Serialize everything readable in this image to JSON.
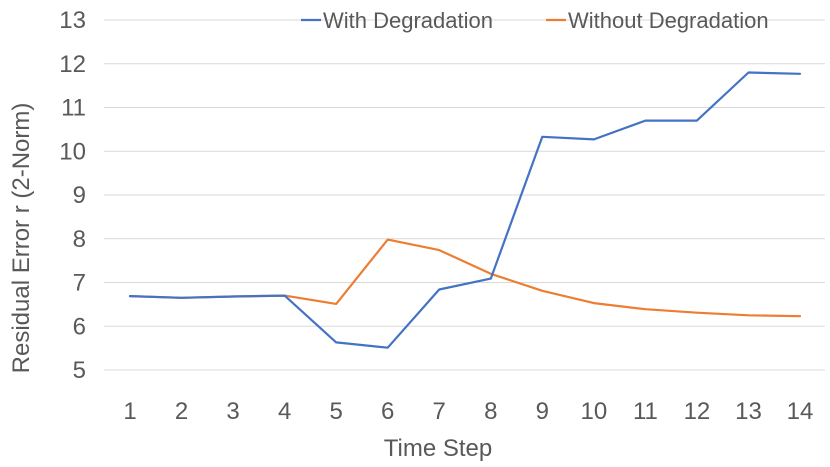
{
  "chart_data": {
    "type": "line",
    "xlabel": "Time Step",
    "ylabel": "Residual Error r  (2-Norm)",
    "categories": [
      "1",
      "2",
      "3",
      "4",
      "5",
      "6",
      "7",
      "8",
      "9",
      "10",
      "11",
      "12",
      "13",
      "14"
    ],
    "ylim": [
      5,
      13
    ],
    "yticks": [
      "5",
      "6",
      "7",
      "8",
      "9",
      "10",
      "11",
      "12",
      "13"
    ],
    "grid": true,
    "legend_position": "top",
    "series": [
      {
        "name": "With Degradation",
        "color": "#4472c4",
        "values": [
          6.69,
          6.65,
          6.68,
          6.7,
          5.63,
          5.51,
          6.84,
          7.09,
          10.33,
          10.27,
          10.7,
          10.7,
          11.8,
          11.77
        ]
      },
      {
        "name": "Without Degradation",
        "color": "#ed7d31",
        "values": [
          6.69,
          6.65,
          6.68,
          6.7,
          6.51,
          7.98,
          7.74,
          7.2,
          6.81,
          6.53,
          6.39,
          6.31,
          6.25,
          6.23
        ]
      }
    ]
  }
}
